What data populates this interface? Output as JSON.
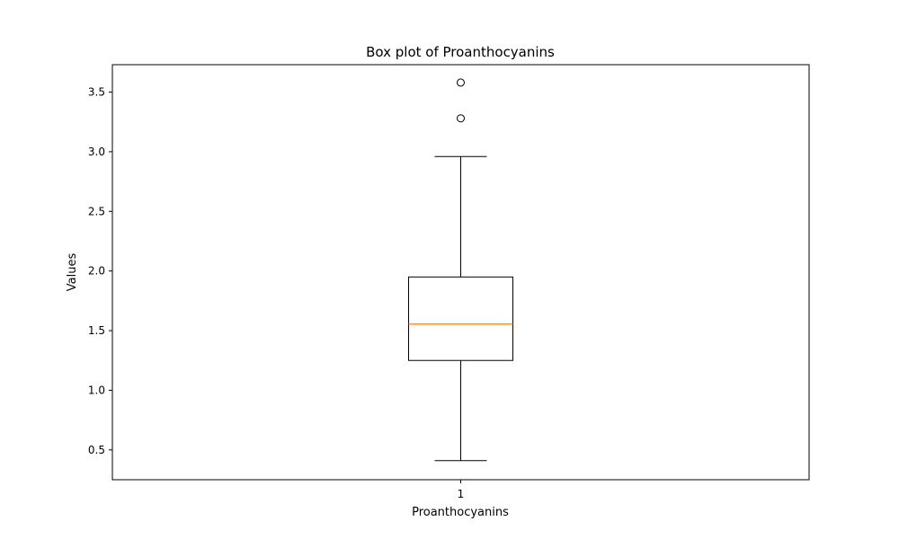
{
  "chart_data": {
    "type": "box",
    "title": "Box plot of Proanthocyanins",
    "xlabel": "Proanthocyanins",
    "ylabel": "Values",
    "categories": [
      "1"
    ],
    "ylim": [
      0.25,
      3.73
    ],
    "yticks": [
      0.5,
      1.0,
      1.5,
      2.0,
      2.5,
      3.0,
      3.5
    ],
    "ytick_labels": [
      "0.5",
      "1.0",
      "1.5",
      "2.0",
      "2.5",
      "3.0",
      "3.5"
    ],
    "grid": false,
    "boxes": [
      {
        "category": "1",
        "whisker_low": 0.41,
        "q1": 1.25,
        "median": 1.555,
        "q3": 1.95,
        "whisker_high": 2.96,
        "outliers": [
          3.28,
          3.58
        ]
      }
    ],
    "colors": {
      "box": "#000000",
      "median": "#ff7f0e",
      "whisker": "#000000",
      "outlier": "#000000"
    }
  }
}
